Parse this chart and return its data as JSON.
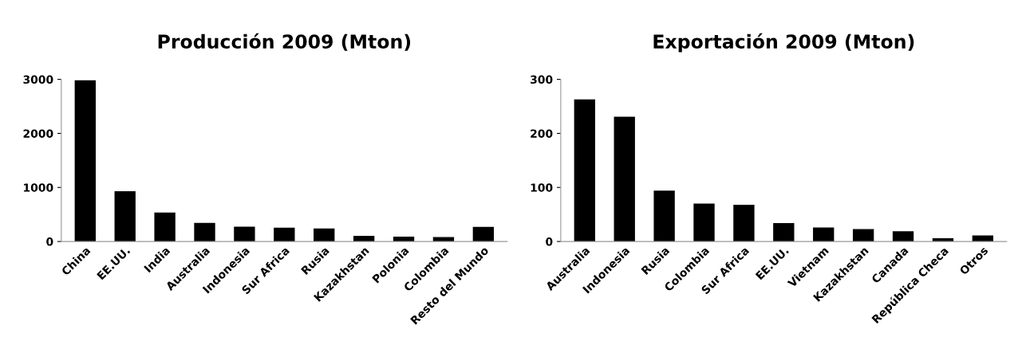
{
  "chart_data": [
    {
      "type": "bar",
      "title": "Producción 2009 (Mton)",
      "categories": [
        "China",
        "EE.UU.",
        "India",
        "Australia",
        "Indonesia",
        "Sur Africa",
        "Rusia",
        "Kazakhstan",
        "Polonia",
        "Colombia",
        "Resto del Mundo"
      ],
      "values": [
        2971,
        919,
        526,
        335,
        263,
        247,
        229,
        96,
        78,
        73,
        260
      ],
      "color": "#000000",
      "ylim": [
        0,
        3000
      ],
      "yticks": [
        0,
        1000,
        2000,
        3000
      ],
      "grid": false,
      "legend": false
    },
    {
      "type": "bar",
      "title": "Exportación 2009 (Mton)",
      "categories": [
        "Australia",
        "Indonesia",
        "Rusia",
        "Colombia",
        "Sur Africa",
        "EE.UU.",
        "Vietnam",
        "Kazakhstan",
        "Canada",
        "República Checa",
        "Otros"
      ],
      "values": [
        262,
        230,
        93,
        69,
        67,
        33,
        25,
        22,
        18,
        5,
        10
      ],
      "color": "#000000",
      "ylim": [
        0,
        300
      ],
      "yticks": [
        0,
        100,
        200,
        300
      ],
      "grid": false,
      "legend": false
    }
  ]
}
